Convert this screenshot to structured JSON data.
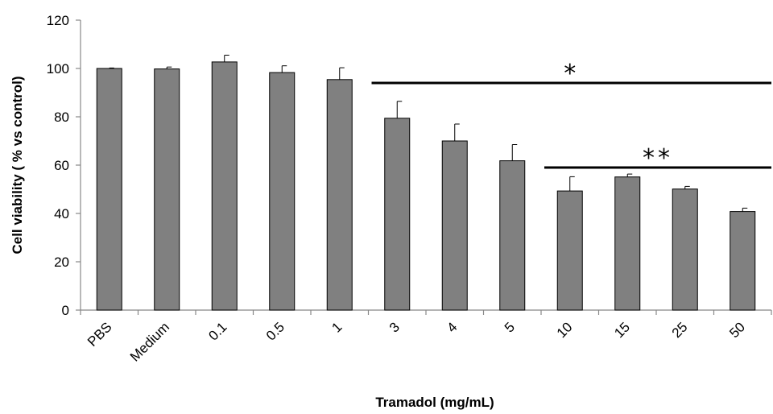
{
  "chart_data": {
    "type": "bar",
    "title": "",
    "xlabel": "Tramadol (mg/mL)",
    "ylabel": "Cell viability ( % vs control)",
    "categories": [
      "PBS",
      "Medium",
      "0.1",
      "0.5",
      "1",
      "3",
      "4",
      "5",
      "10",
      "15",
      "25",
      "50"
    ],
    "values": [
      100,
      99.8,
      102.7,
      98.3,
      95.4,
      79.4,
      70.0,
      61.8,
      49.3,
      55.1,
      50.1,
      40.8
    ],
    "error_bars": [
      0.2,
      0.8,
      2.8,
      2.8,
      4.9,
      7.0,
      7.0,
      6.7,
      5.9,
      1.2,
      1.1,
      1.4
    ],
    "ylim": [
      0,
      120
    ],
    "yticks": [
      0,
      20,
      40,
      60,
      80,
      100,
      120
    ],
    "grid": false,
    "bar_color": "#808080",
    "significance": [
      {
        "label": "*",
        "from_category": "3",
        "to_category": "50",
        "y": 94
      },
      {
        "label": "**",
        "from_category": "10",
        "to_category": "50",
        "y": 59
      }
    ]
  }
}
